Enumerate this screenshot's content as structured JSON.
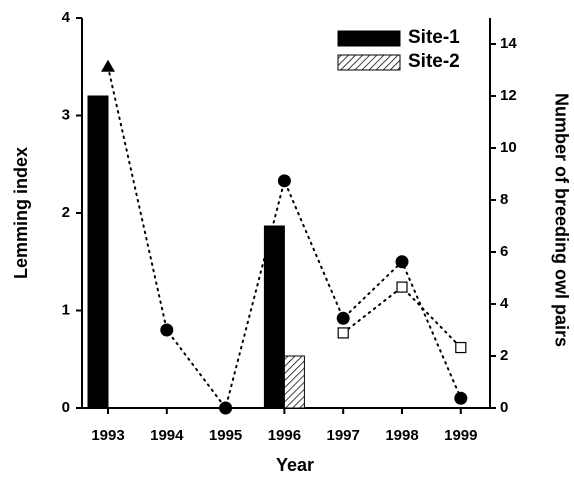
{
  "chart_data": {
    "type": "bar_point",
    "xlabel": "Year",
    "ylabel": "Lemming index",
    "y2label": "Number of breeding owl pairs",
    "categories": [
      "1993",
      "1994",
      "1995",
      "1996",
      "1997",
      "1998",
      "1999"
    ],
    "ylim": [
      0,
      4
    ],
    "yticks": [
      0,
      1,
      2,
      3,
      4
    ],
    "y2lim": [
      0,
      15
    ],
    "y2ticks": [
      0,
      2,
      4,
      6,
      8,
      10,
      12,
      14
    ],
    "series": [
      {
        "name": "Site-1",
        "kind": "bar",
        "axis": "y2",
        "color": "#000000",
        "values": [
          12,
          null,
          null,
          7,
          null,
          null,
          null
        ]
      },
      {
        "name": "Site-2",
        "kind": "bar",
        "axis": "y2",
        "color": "hatch",
        "values": [
          null,
          null,
          null,
          2,
          null,
          null,
          null
        ]
      },
      {
        "kind": "point",
        "color": "#000000",
        "markers": [
          "triangle",
          "circle",
          "circle",
          "circle",
          "circle",
          "circle",
          "circle"
        ],
        "values": [
          3.5,
          0.8,
          0,
          2.33,
          0.92,
          1.5,
          0.1
        ]
      },
      {
        "kind": "point",
        "color": "#000000",
        "markers": [
          "square",
          "square",
          "square",
          "square",
          "square",
          "square",
          "square"
        ],
        "values": [
          null,
          null,
          null,
          null,
          0.77,
          1.24,
          0.62
        ]
      }
    ],
    "legend": "upper right"
  }
}
